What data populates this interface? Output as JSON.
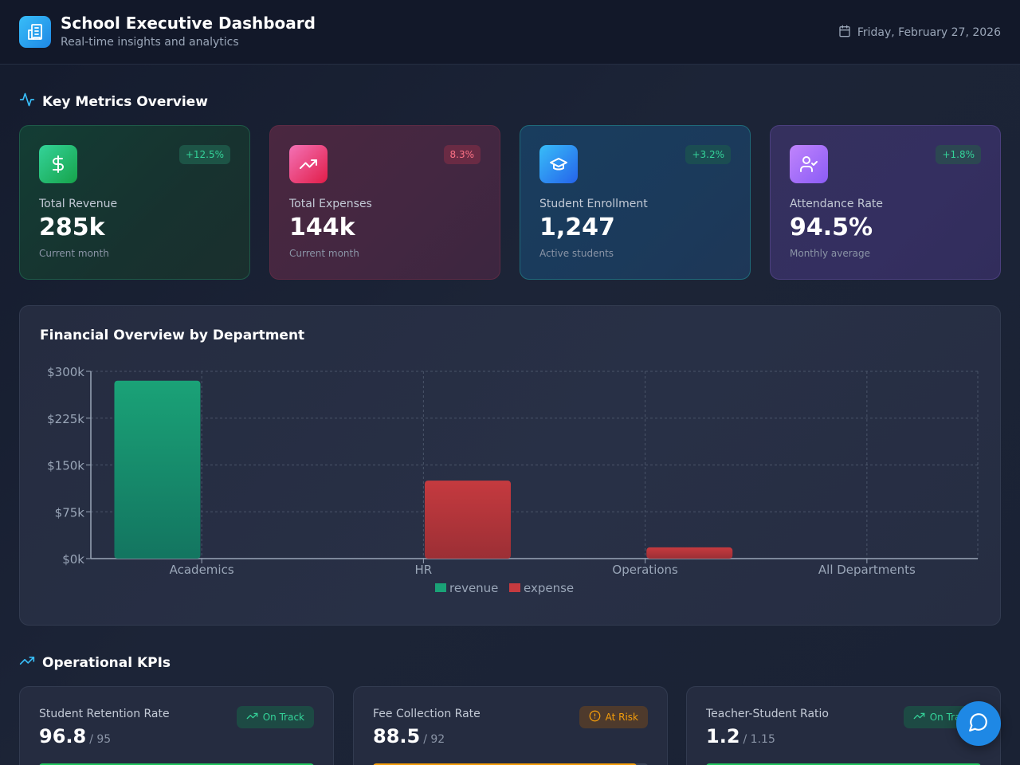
{
  "header": {
    "title": "School Executive Dashboard",
    "subtitle": "Real-time insights and analytics",
    "date": "Friday, February 27, 2026"
  },
  "sections": {
    "metrics_title": "Key Metrics Overview",
    "kpis_title": "Operational KPIs"
  },
  "metrics": [
    {
      "label": "Total Revenue",
      "value": "285k",
      "sub": "Current month",
      "badge": "+12.5%",
      "icon": "dollar-icon"
    },
    {
      "label": "Total Expenses",
      "value": "144k",
      "sub": "Current month",
      "badge": "8.3%",
      "icon": "trending-up-icon"
    },
    {
      "label": "Student Enrollment",
      "value": "1,247",
      "sub": "Active students",
      "badge": "+3.2%",
      "icon": "graduation-cap-icon"
    },
    {
      "label": "Attendance Rate",
      "value": "94.5%",
      "sub": "Monthly average",
      "badge": "+1.8%",
      "icon": "user-check-icon"
    }
  ],
  "chart_title": "Financial Overview by Department",
  "chart_data": {
    "type": "bar",
    "categories": [
      "Academics",
      "HR",
      "Operations",
      "All Departments"
    ],
    "series": [
      {
        "name": "revenue",
        "values": [
          285,
          0,
          0,
          0
        ],
        "color": "#1aa277"
      },
      {
        "name": "expense",
        "values": [
          0,
          125,
          18,
          0
        ],
        "color": "#c53a3f"
      }
    ],
    "y_ticks": [
      "$0k",
      "$75k",
      "$150k",
      "$225k",
      "$300k"
    ],
    "y_tick_values": [
      0,
      75,
      150,
      225,
      300
    ],
    "ylim": [
      0,
      300
    ],
    "grid": true,
    "legend_position": "bottom-center"
  },
  "kpis": [
    {
      "label": "Student Retention Rate",
      "value": "96.8",
      "target": "/ 95",
      "status": "On Track",
      "progress": 1.0,
      "color": "#22c55e"
    },
    {
      "label": "Fee Collection Rate",
      "value": "88.5",
      "target": "/ 92",
      "status": "At Risk",
      "progress": 0.96,
      "color": "#f59e0b"
    },
    {
      "label": "Teacher-Student Ratio",
      "value": "1.2",
      "target": "/ 1.15",
      "status": "On Track",
      "progress": 1.0,
      "color": "#22c55e"
    }
  ],
  "colors": {
    "accent": "#38bdf8",
    "positive": "#34d399",
    "negative": "#fb7185",
    "warning": "#f59e0b",
    "chat_button": "#1e88e5"
  },
  "chat": {
    "icon": "chat-bubble-icon"
  }
}
